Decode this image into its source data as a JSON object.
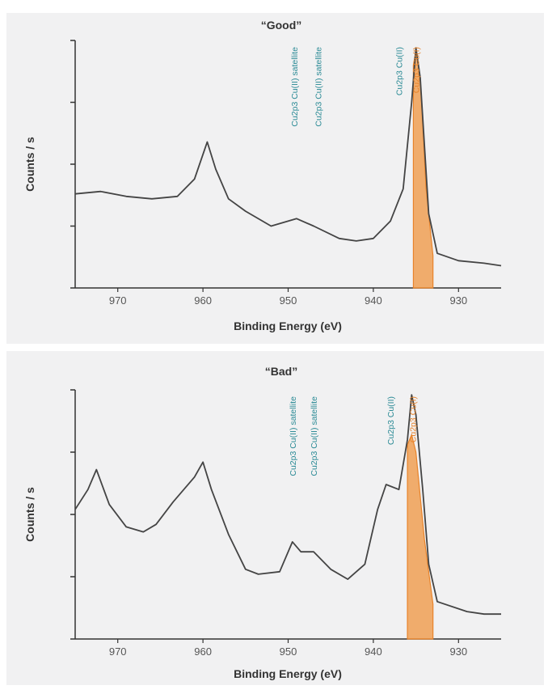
{
  "chart_data": [
    {
      "type": "area",
      "title": "“Good”",
      "xlabel": "Binding Energy (eV)",
      "ylabel": "Counts / s",
      "x_reversed": true,
      "xlim": [
        975,
        925
      ],
      "xticks": [
        970,
        960,
        950,
        940,
        930
      ],
      "ylim": [
        0,
        100
      ],
      "colors": {
        "cu1": "#f0a055",
        "cu1_line": "#e8832a",
        "cu2": "#3a8f96",
        "cu2_line": "#1f6f78",
        "envelope": "#444444",
        "label_cu1": "#e8832a",
        "label_cu2": "#2a8a95"
      },
      "series": [
        {
          "name": "",
          "values": [
            [
              975,
              38
            ],
            [
              972,
              39
            ],
            [
              969,
              37
            ],
            [
              966,
              36
            ],
            [
              963,
              37
            ],
            [
              961,
              44
            ],
            [
              959.5,
              59
            ],
            [
              958.5,
              48
            ],
            [
              957,
              36
            ],
            [
              955,
              31
            ],
            [
              952,
              25
            ],
            [
              949,
              28
            ],
            [
              947,
              25
            ],
            [
              944,
              20
            ],
            [
              942,
              19
            ],
            [
              940,
              20
            ],
            [
              938,
              27
            ],
            [
              936.5,
              40
            ],
            [
              935.5,
              75
            ],
            [
              935,
              97
            ],
            [
              934.5,
              85
            ],
            [
              933.5,
              30
            ],
            [
              932.5,
              14
            ],
            [
              930,
              11
            ],
            [
              927,
              10
            ],
            [
              925,
              9
            ]
          ]
        },
        {
          "name": "",
          "values": [
            [
              935.3,
              90
            ],
            [
              935,
              96
            ],
            [
              934.5,
              85
            ],
            [
              933.8,
              40
            ],
            [
              933,
              13
            ]
          ]
        }
      ],
      "peaks": [
        {
          "label": "Cu2p3 Cu(II) satellite",
          "x": 949.3,
          "kind": "cu2"
        },
        {
          "label": "Cu2p3 Cu(II) satellite",
          "x": 946.5,
          "kind": "cu2"
        },
        {
          "label": "Cu2p3 Cu(II)",
          "x": 937,
          "kind": "cu2"
        },
        {
          "label": "Cu2p3 Cu(I)",
          "x": 935,
          "kind": "cu1"
        }
      ]
    },
    {
      "type": "area",
      "title": "“Bad”",
      "xlabel": "Binding Energy (eV)",
      "ylabel": "Counts / s",
      "x_reversed": true,
      "xlim": [
        975,
        925
      ],
      "xticks": [
        970,
        960,
        950,
        940,
        930
      ],
      "ylim": [
        0,
        100
      ],
      "colors": {
        "cu1": "#f0a055",
        "cu1_line": "#e8832a",
        "cu2": "#3a8f96",
        "cu2_line": "#1f6f78",
        "envelope": "#444444",
        "label_cu1": "#e8832a",
        "label_cu2": "#2a8a95"
      },
      "series": [
        {
          "name": "",
          "values": [
            [
              975,
              52
            ],
            [
              973.5,
              60
            ],
            [
              972.5,
              68
            ],
            [
              971,
              54
            ],
            [
              969,
              45
            ],
            [
              967,
              43
            ],
            [
              965.5,
              46
            ],
            [
              963.5,
              55
            ],
            [
              961,
              65
            ],
            [
              960,
              71
            ],
            [
              959,
              60
            ],
            [
              957,
              42
            ],
            [
              955,
              28
            ],
            [
              953.5,
              26
            ],
            [
              951,
              27
            ],
            [
              949.5,
              39
            ],
            [
              948.5,
              35
            ],
            [
              947,
              35
            ],
            [
              945,
              28
            ],
            [
              943,
              24
            ],
            [
              941,
              30
            ],
            [
              939.5,
              52
            ],
            [
              938.5,
              62
            ],
            [
              937,
              60
            ],
            [
              936,
              80
            ],
            [
              935.5,
              98
            ],
            [
              935,
              90
            ],
            [
              934.2,
              60
            ],
            [
              933.5,
              30
            ],
            [
              932.5,
              15
            ],
            [
              929,
              11
            ],
            [
              927,
              10
            ],
            [
              925,
              10
            ]
          ]
        },
        {
          "name": "",
          "values": [
            [
              936,
              78
            ],
            [
              935.5,
              82
            ],
            [
              935,
              75
            ],
            [
              934,
              40
            ],
            [
              933,
              14
            ]
          ]
        }
      ],
      "peaks": [
        {
          "label": "Cu2p3 Cu(II) satellite",
          "x": 949.5,
          "kind": "cu2"
        },
        {
          "label": "Cu2p3 Cu(II) satellite",
          "x": 947,
          "kind": "cu2"
        },
        {
          "label": "Cu2p3 Cu(II)",
          "x": 938,
          "kind": "cu2"
        },
        {
          "label": "Cu2p3 Cu(I)",
          "x": 935.4,
          "kind": "cu1"
        }
      ]
    }
  ]
}
